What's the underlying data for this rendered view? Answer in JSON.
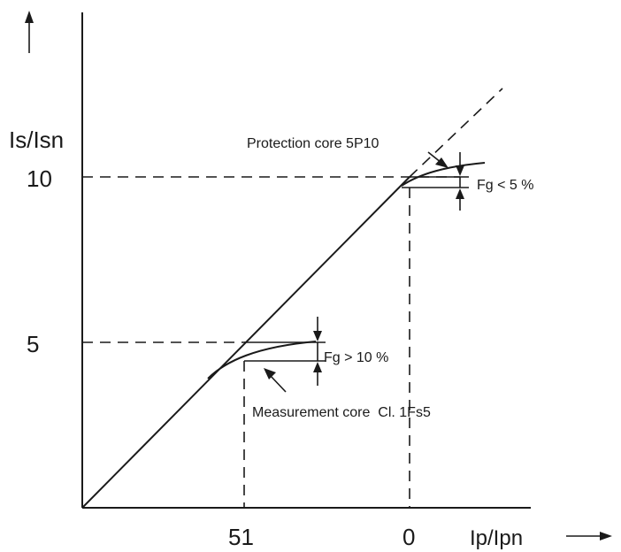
{
  "diagram": {
    "y_axis_label": "Is/Isn",
    "x_axis_label": "Ip/Ipn",
    "y_ticks": [
      "10",
      "5"
    ],
    "x_ticks": [
      "51",
      "0"
    ],
    "protection_core_label": "Protection core 5P10",
    "protection_fg_label": "Fg < 5 %",
    "measurement_core_label": "Measurement core  Cl. 1Fs5",
    "measurement_fg_label": "Fg > 10 %"
  }
}
